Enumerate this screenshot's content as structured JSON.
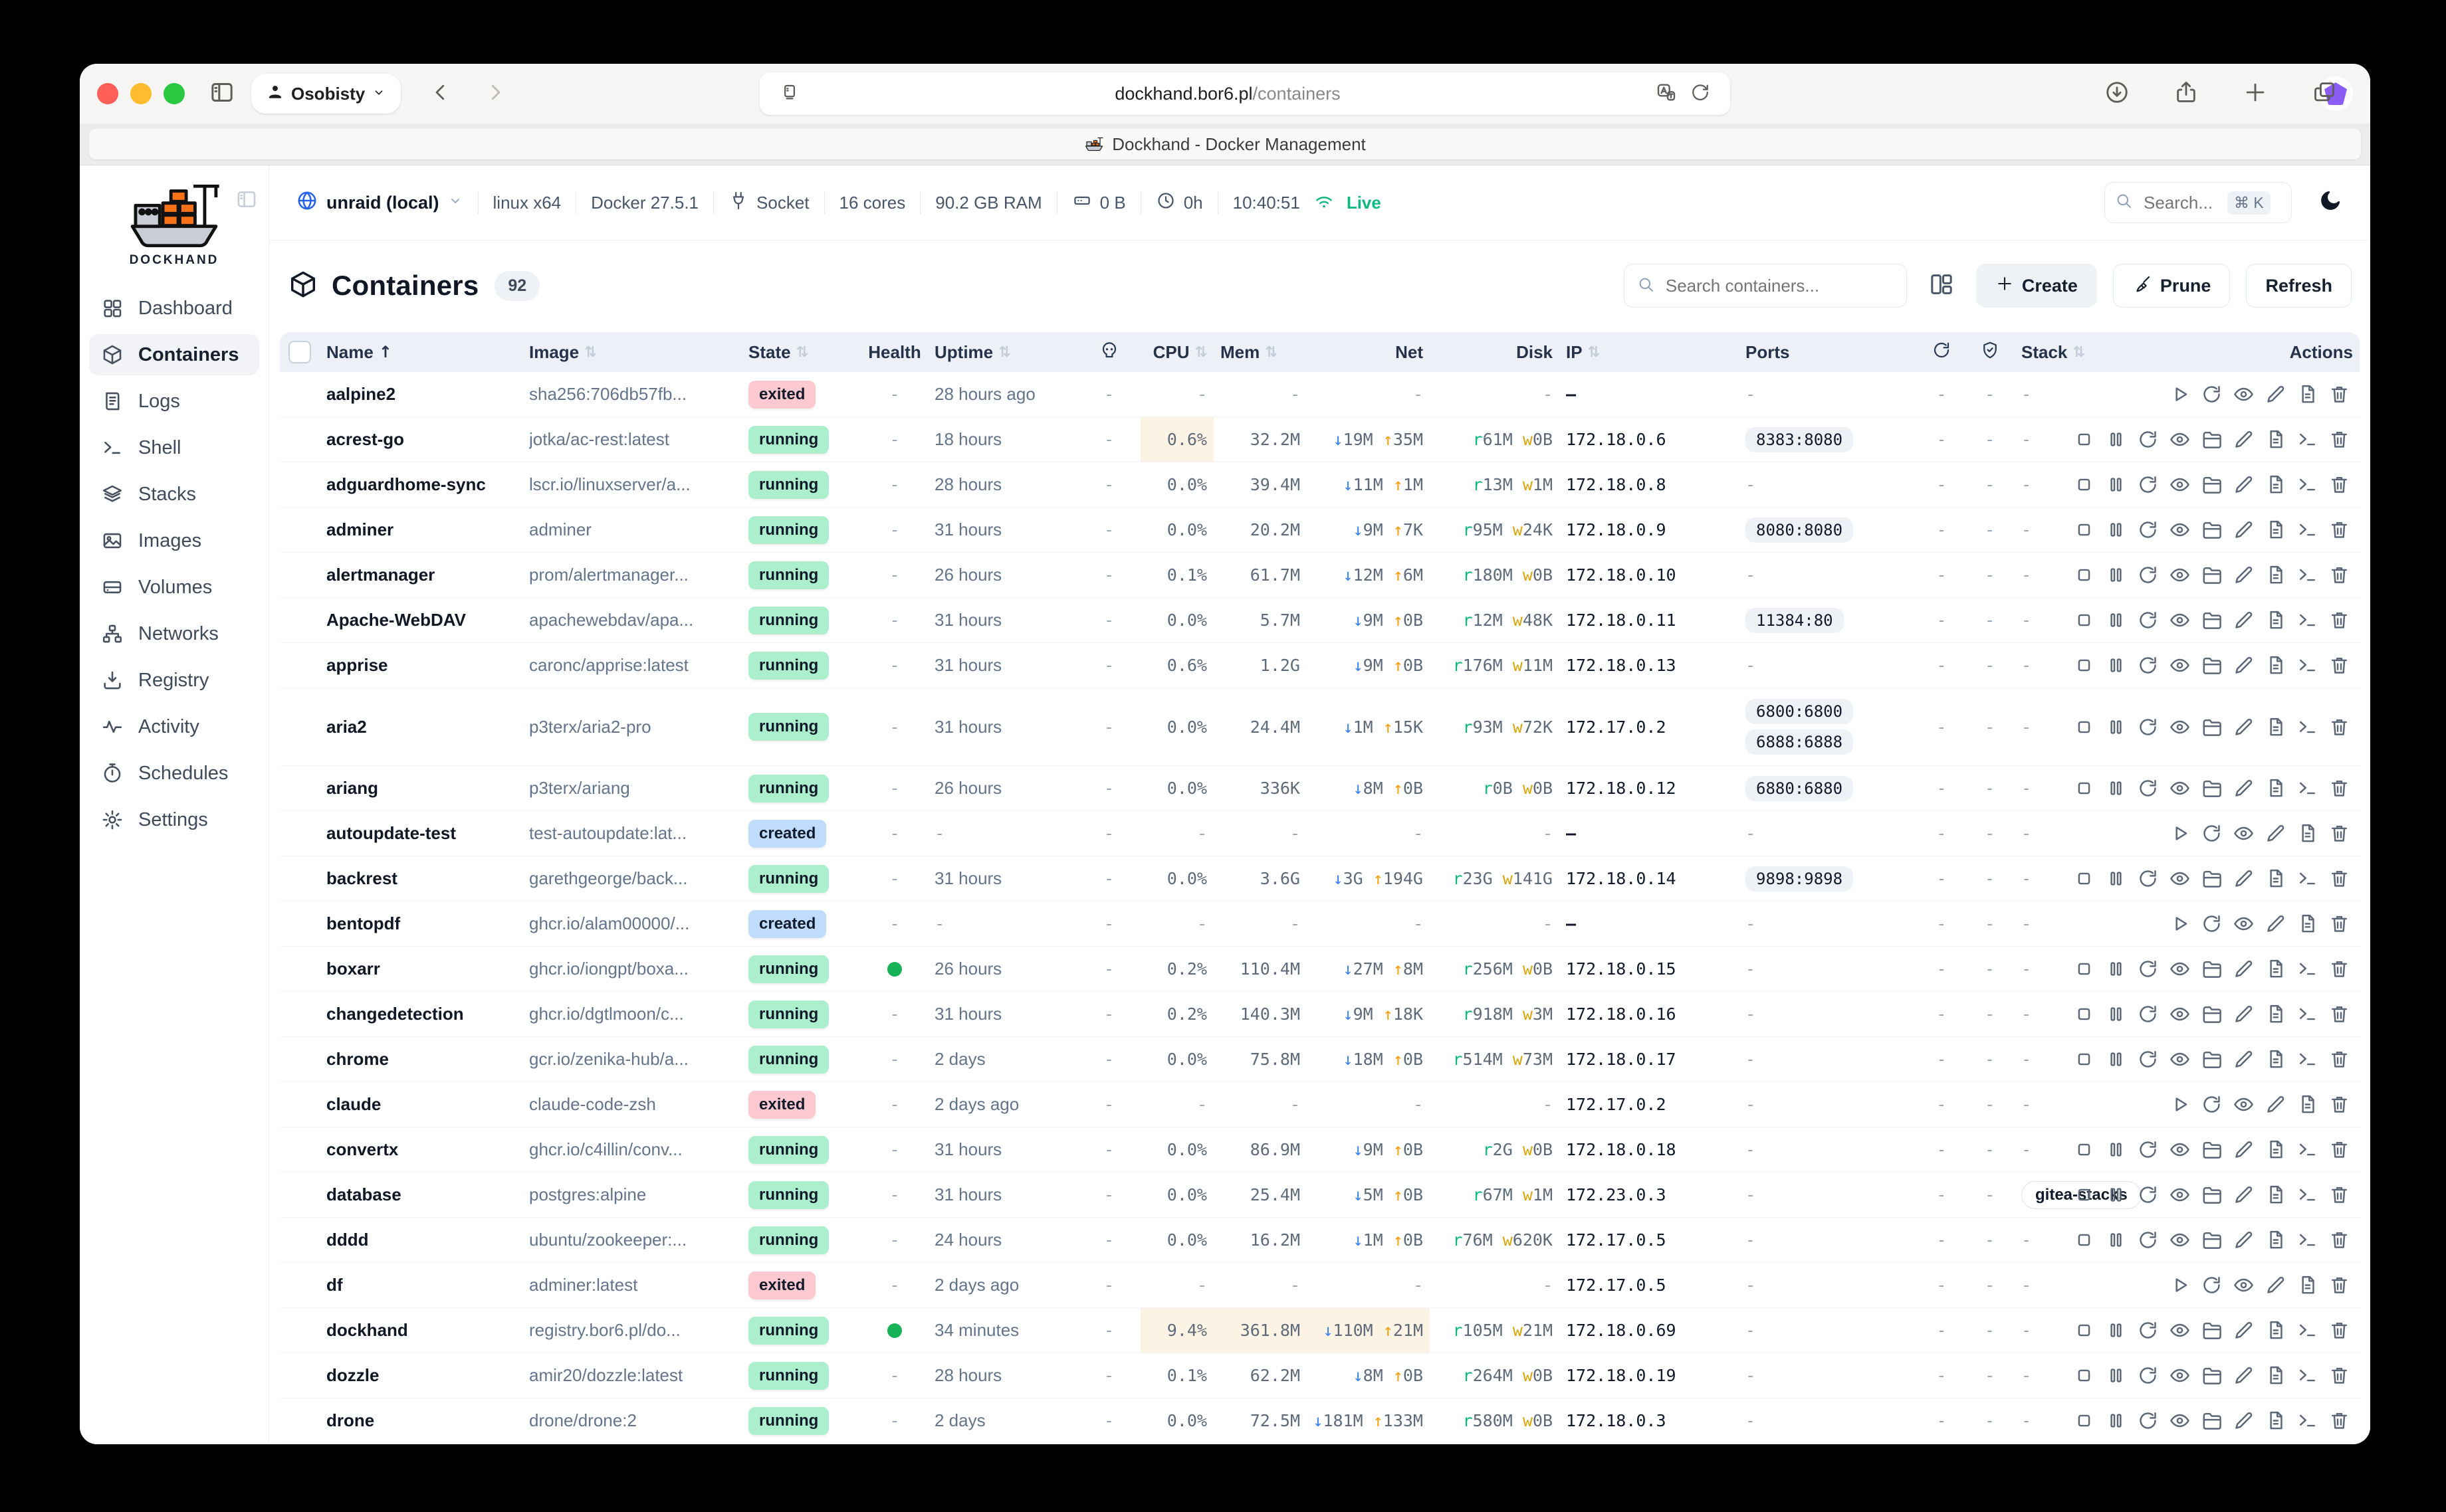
{
  "browser": {
    "profile": "Osobisty",
    "url_host": "dockhand.bor6.pl",
    "url_path": "/containers",
    "tab_title": "Dockhand - Docker Management"
  },
  "sidebar": {
    "logo_text": "DOCKHAND",
    "items": [
      {
        "label": "Dashboard",
        "icon": "grid",
        "active": false
      },
      {
        "label": "Containers",
        "icon": "cube",
        "active": true
      },
      {
        "label": "Logs",
        "icon": "logs",
        "active": false
      },
      {
        "label": "Shell",
        "icon": "terminal",
        "active": false
      },
      {
        "label": "Stacks",
        "icon": "stacks",
        "active": false
      },
      {
        "label": "Images",
        "icon": "images",
        "active": false
      },
      {
        "label": "Volumes",
        "icon": "volumes",
        "active": false
      },
      {
        "label": "Networks",
        "icon": "networks",
        "active": false
      },
      {
        "label": "Registry",
        "icon": "registry",
        "active": false
      },
      {
        "label": "Activity",
        "icon": "activity",
        "active": false
      },
      {
        "label": "Schedules",
        "icon": "schedules",
        "active": false
      },
      {
        "label": "Settings",
        "icon": "settings",
        "active": false
      }
    ]
  },
  "infobar": {
    "server": "unraid (local)",
    "os": "linux x64",
    "docker": "Docker 27.5.1",
    "connection": "Socket",
    "cores": "16 cores",
    "ram": "90.2 GB RAM",
    "disk": "0 B",
    "uptime": "0h",
    "time": "10:40:51",
    "live": "Live",
    "search_placeholder": "Search...",
    "shortcut": "⌘ K"
  },
  "page": {
    "title": "Containers",
    "count": "92",
    "search_placeholder": "Search containers...",
    "create_label": "Create",
    "prune_label": "Prune",
    "refresh_label": "Refresh"
  },
  "table": {
    "headers": {
      "name": "Name",
      "image": "Image",
      "state": "State",
      "health": "Health",
      "uptime": "Uptime",
      "cpu": "CPU",
      "mem": "Mem",
      "net": "Net",
      "disk": "Disk",
      "ip": "IP",
      "ports": "Ports",
      "stack": "Stack",
      "actions": "Actions",
      "sort_asc": "↑",
      "sort_both": "⇅"
    },
    "dash": "-",
    "emdash": "–",
    "actions": {
      "running": [
        "stop",
        "pause",
        "restart",
        "eye",
        "folder",
        "pencil",
        "file",
        "terminal",
        "trash"
      ],
      "stopped": [
        "play",
        "restart",
        "eye",
        "pencil",
        "file",
        "trash"
      ]
    },
    "colors": {
      "running_bg": "#abefcd",
      "exited_bg": "#fec9d0",
      "created_bg": "#bfdcfd",
      "health_dot": "#17b157",
      "net_down": "#3b82f6",
      "net_up": "#f59e0b",
      "disk_read": "#10b981",
      "disk_write": "#d9a60a",
      "highlight": "#fdf3e4",
      "live": "#10b981"
    },
    "rows": [
      {
        "name": "aalpine2",
        "image": "sha256:706db57fb...",
        "state": "exited",
        "health": "-",
        "uptime": "28 hours ago",
        "cpu": "-",
        "mem": "-",
        "net": null,
        "disk": null,
        "ip": "–",
        "ports": [],
        "stack": "-",
        "kind": "stopped",
        "hl": []
      },
      {
        "name": "acrest-go",
        "image": "jotka/ac-rest:latest",
        "state": "running",
        "health": "-",
        "uptime": "18 hours",
        "cpu": "0.6%",
        "mem": "32.2M",
        "net": {
          "down": "19M",
          "up": "35M"
        },
        "disk": {
          "r": "61M",
          "w": "0B"
        },
        "ip": "172.18.0.6",
        "ports": [
          "8383:8080"
        ],
        "stack": "-",
        "kind": "running",
        "hl": [
          "cpu"
        ]
      },
      {
        "name": "adguardhome-sync",
        "image": "lscr.io/linuxserver/a...",
        "state": "running",
        "health": "-",
        "uptime": "28 hours",
        "cpu": "0.0%",
        "mem": "39.4M",
        "net": {
          "down": "11M",
          "up": "1M"
        },
        "disk": {
          "r": "13M",
          "w": "1M"
        },
        "ip": "172.18.0.8",
        "ports": [],
        "stack": "-",
        "kind": "running",
        "hl": []
      },
      {
        "name": "adminer",
        "image": "adminer",
        "state": "running",
        "health": "-",
        "uptime": "31 hours",
        "cpu": "0.0%",
        "mem": "20.2M",
        "net": {
          "down": "9M",
          "up": "7K"
        },
        "disk": {
          "r": "95M",
          "w": "24K"
        },
        "ip": "172.18.0.9",
        "ports": [
          "8080:8080"
        ],
        "stack": "-",
        "kind": "running",
        "hl": []
      },
      {
        "name": "alertmanager",
        "image": "prom/alertmanager...",
        "state": "running",
        "health": "-",
        "uptime": "26 hours",
        "cpu": "0.1%",
        "mem": "61.7M",
        "net": {
          "down": "12M",
          "up": "6M"
        },
        "disk": {
          "r": "180M",
          "w": "0B"
        },
        "ip": "172.18.0.10",
        "ports": [],
        "stack": "-",
        "kind": "running",
        "hl": []
      },
      {
        "name": "Apache-WebDAV",
        "image": "apachewebdav/apa...",
        "state": "running",
        "health": "-",
        "uptime": "31 hours",
        "cpu": "0.0%",
        "mem": "5.7M",
        "net": {
          "down": "9M",
          "up": "0B"
        },
        "disk": {
          "r": "12M",
          "w": "48K"
        },
        "ip": "172.18.0.11",
        "ports": [
          "11384:80"
        ],
        "stack": "-",
        "kind": "running",
        "hl": []
      },
      {
        "name": "apprise",
        "image": "caronc/apprise:latest",
        "state": "running",
        "health": "-",
        "uptime": "31 hours",
        "cpu": "0.6%",
        "mem": "1.2G",
        "net": {
          "down": "9M",
          "up": "0B"
        },
        "disk": {
          "r": "176M",
          "w": "11M"
        },
        "ip": "172.18.0.13",
        "ports": [],
        "stack": "-",
        "kind": "running",
        "hl": []
      },
      {
        "name": "aria2",
        "image": "p3terx/aria2-pro",
        "state": "running",
        "health": "-",
        "uptime": "31 hours",
        "cpu": "0.0%",
        "mem": "24.4M",
        "net": {
          "down": "1M",
          "up": "15K"
        },
        "disk": {
          "r": "93M",
          "w": "72K"
        },
        "ip": "172.17.0.2",
        "ports": [
          "6800:6800",
          "6888:6888"
        ],
        "stack": "-",
        "kind": "running",
        "hl": [],
        "tall": true
      },
      {
        "name": "ariang",
        "image": "p3terx/ariang",
        "state": "running",
        "health": "-",
        "uptime": "26 hours",
        "cpu": "0.0%",
        "mem": "336K",
        "net": {
          "down": "8M",
          "up": "0B"
        },
        "disk": {
          "r": "0B",
          "w": "0B"
        },
        "ip": "172.18.0.12",
        "ports": [
          "6880:6880"
        ],
        "stack": "-",
        "kind": "running",
        "hl": []
      },
      {
        "name": "autoupdate-test",
        "image": "test-autoupdate:lat...",
        "state": "created",
        "health": "-",
        "uptime": "-",
        "cpu": "-",
        "mem": "-",
        "net": null,
        "disk": null,
        "ip": "–",
        "ports": [],
        "stack": "-",
        "kind": "stopped",
        "hl": []
      },
      {
        "name": "backrest",
        "image": "garethgeorge/back...",
        "state": "running",
        "health": "-",
        "uptime": "31 hours",
        "cpu": "0.0%",
        "mem": "3.6G",
        "net": {
          "down": "3G",
          "up": "194G"
        },
        "disk": {
          "r": "23G",
          "w": "141G"
        },
        "ip": "172.18.0.14",
        "ports": [
          "9898:9898"
        ],
        "stack": "-",
        "kind": "running",
        "hl": []
      },
      {
        "name": "bentopdf",
        "image": "ghcr.io/alam00000/...",
        "state": "created",
        "health": "-",
        "uptime": "-",
        "cpu": "-",
        "mem": "-",
        "net": null,
        "disk": null,
        "ip": "–",
        "ports": [],
        "stack": "-",
        "kind": "stopped",
        "hl": []
      },
      {
        "name": "boxarr",
        "image": "ghcr.io/iongpt/boxa...",
        "state": "running",
        "health": "dot",
        "uptime": "26 hours",
        "cpu": "0.2%",
        "mem": "110.4M",
        "net": {
          "down": "27M",
          "up": "8M"
        },
        "disk": {
          "r": "256M",
          "w": "0B"
        },
        "ip": "172.18.0.15",
        "ports": [],
        "stack": "-",
        "kind": "running",
        "hl": []
      },
      {
        "name": "changedetection",
        "image": "ghcr.io/dgtlmoon/c...",
        "state": "running",
        "health": "-",
        "uptime": "31 hours",
        "cpu": "0.2%",
        "mem": "140.3M",
        "net": {
          "down": "9M",
          "up": "18K"
        },
        "disk": {
          "r": "918M",
          "w": "3M"
        },
        "ip": "172.18.0.16",
        "ports": [],
        "stack": "-",
        "kind": "running",
        "hl": []
      },
      {
        "name": "chrome",
        "image": "gcr.io/zenika-hub/a...",
        "state": "running",
        "health": "-",
        "uptime": "2 days",
        "cpu": "0.0%",
        "mem": "75.8M",
        "net": {
          "down": "18M",
          "up": "0B"
        },
        "disk": {
          "r": "514M",
          "w": "73M"
        },
        "ip": "172.18.0.17",
        "ports": [],
        "stack": "-",
        "kind": "running",
        "hl": []
      },
      {
        "name": "claude",
        "image": "claude-code-zsh",
        "state": "exited",
        "health": "-",
        "uptime": "2 days ago",
        "cpu": "-",
        "mem": "-",
        "net": null,
        "disk": null,
        "ip": "172.17.0.2",
        "ports": [],
        "stack": "-",
        "kind": "stopped",
        "hl": []
      },
      {
        "name": "convertx",
        "image": "ghcr.io/c4illin/conv...",
        "state": "running",
        "health": "-",
        "uptime": "31 hours",
        "cpu": "0.0%",
        "mem": "86.9M",
        "net": {
          "down": "9M",
          "up": "0B"
        },
        "disk": {
          "r": "2G",
          "w": "0B"
        },
        "ip": "172.18.0.18",
        "ports": [],
        "stack": "-",
        "kind": "running",
        "hl": []
      },
      {
        "name": "database",
        "image": "postgres:alpine",
        "state": "running",
        "health": "-",
        "uptime": "31 hours",
        "cpu": "0.0%",
        "mem": "25.4M",
        "net": {
          "down": "5M",
          "up": "0B"
        },
        "disk": {
          "r": "67M",
          "w": "1M"
        },
        "ip": "172.23.0.3",
        "ports": [],
        "stack": "gitea-stacks",
        "kind": "running",
        "hl": []
      },
      {
        "name": "dddd",
        "image": "ubuntu/zookeeper:...",
        "state": "running",
        "health": "-",
        "uptime": "24 hours",
        "cpu": "0.0%",
        "mem": "16.2M",
        "net": {
          "down": "1M",
          "up": "0B"
        },
        "disk": {
          "r": "76M",
          "w": "620K"
        },
        "ip": "172.17.0.5",
        "ports": [],
        "stack": "-",
        "kind": "running",
        "hl": []
      },
      {
        "name": "df",
        "image": "adminer:latest",
        "state": "exited",
        "health": "-",
        "uptime": "2 days ago",
        "cpu": "-",
        "mem": "-",
        "net": null,
        "disk": null,
        "ip": "172.17.0.5",
        "ports": [],
        "stack": "-",
        "kind": "stopped",
        "hl": []
      },
      {
        "name": "dockhand",
        "image": "registry.bor6.pl/do...",
        "state": "running",
        "health": "dot",
        "uptime": "34 minutes",
        "cpu": "9.4%",
        "mem": "361.8M",
        "net": {
          "down": "110M",
          "up": "21M"
        },
        "disk": {
          "r": "105M",
          "w": "21M"
        },
        "ip": "172.18.0.69",
        "ports": [],
        "stack": "-",
        "kind": "running",
        "hl": [
          "cpu",
          "mem",
          "net"
        ]
      },
      {
        "name": "dozzle",
        "image": "amir20/dozzle:latest",
        "state": "running",
        "health": "-",
        "uptime": "28 hours",
        "cpu": "0.1%",
        "mem": "62.2M",
        "net": {
          "down": "8M",
          "up": "0B"
        },
        "disk": {
          "r": "264M",
          "w": "0B"
        },
        "ip": "172.18.0.19",
        "ports": [],
        "stack": "-",
        "kind": "running",
        "hl": []
      },
      {
        "name": "drone",
        "image": "drone/drone:2",
        "state": "running",
        "health": "-",
        "uptime": "2 days",
        "cpu": "0.0%",
        "mem": "72.5M",
        "net": {
          "down": "181M",
          "up": "133M"
        },
        "disk": {
          "r": "580M",
          "w": "0B"
        },
        "ip": "172.18.0.3",
        "ports": [],
        "stack": "-",
        "kind": "running",
        "hl": []
      }
    ]
  }
}
